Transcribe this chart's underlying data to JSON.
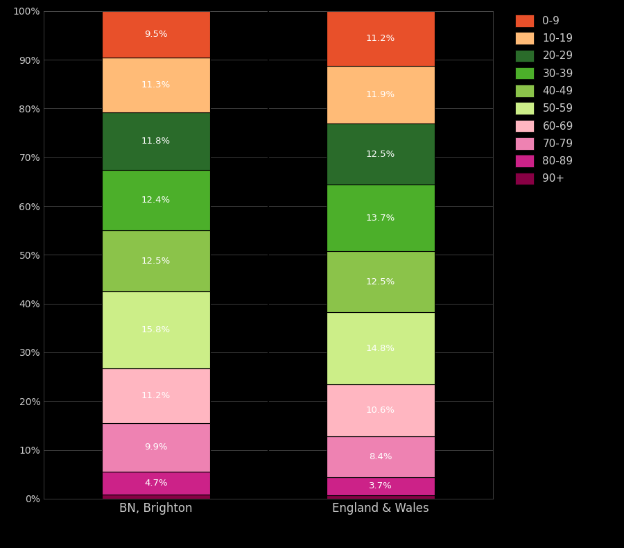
{
  "categories": [
    "BN, Brighton",
    "England & Wales"
  ],
  "colors": {
    "0-9": "#E8502A",
    "10-19": "#FFBB77",
    "20-29": "#2A6B2A",
    "30-39": "#4CAF2A",
    "40-49": "#8BC34A",
    "50-59": "#CCEE88",
    "60-69": "#FFB6C1",
    "70-79": "#EE82B2",
    "80-89": "#CC2288",
    "90+": "#880044"
  },
  "values": {
    "BN, Brighton": {
      "90+": 0.9,
      "80-89": 4.7,
      "70-79": 9.9,
      "60-69": 11.2,
      "50-59": 15.8,
      "40-49": 12.5,
      "30-39": 12.4,
      "20-29": 11.8,
      "10-19": 11.3,
      "0-9": 9.5
    },
    "England & Wales": {
      "90+": 0.7,
      "80-89": 3.7,
      "70-79": 8.4,
      "60-69": 10.6,
      "50-59": 14.8,
      "40-49": 12.5,
      "30-39": 13.7,
      "20-29": 12.5,
      "10-19": 11.9,
      "0-9": 11.2
    }
  },
  "background_color": "#000000",
  "text_color": "#CCCCCC",
  "label_color": "#FFFFFF",
  "legend_order": [
    "0-9",
    "10-19",
    "20-29",
    "30-39",
    "40-49",
    "50-59",
    "60-69",
    "70-79",
    "80-89",
    "90+"
  ],
  "stack_order": [
    "90+",
    "80-89",
    "70-79",
    "60-69",
    "50-59",
    "40-49",
    "30-39",
    "20-29",
    "10-19",
    "0-9"
  ]
}
